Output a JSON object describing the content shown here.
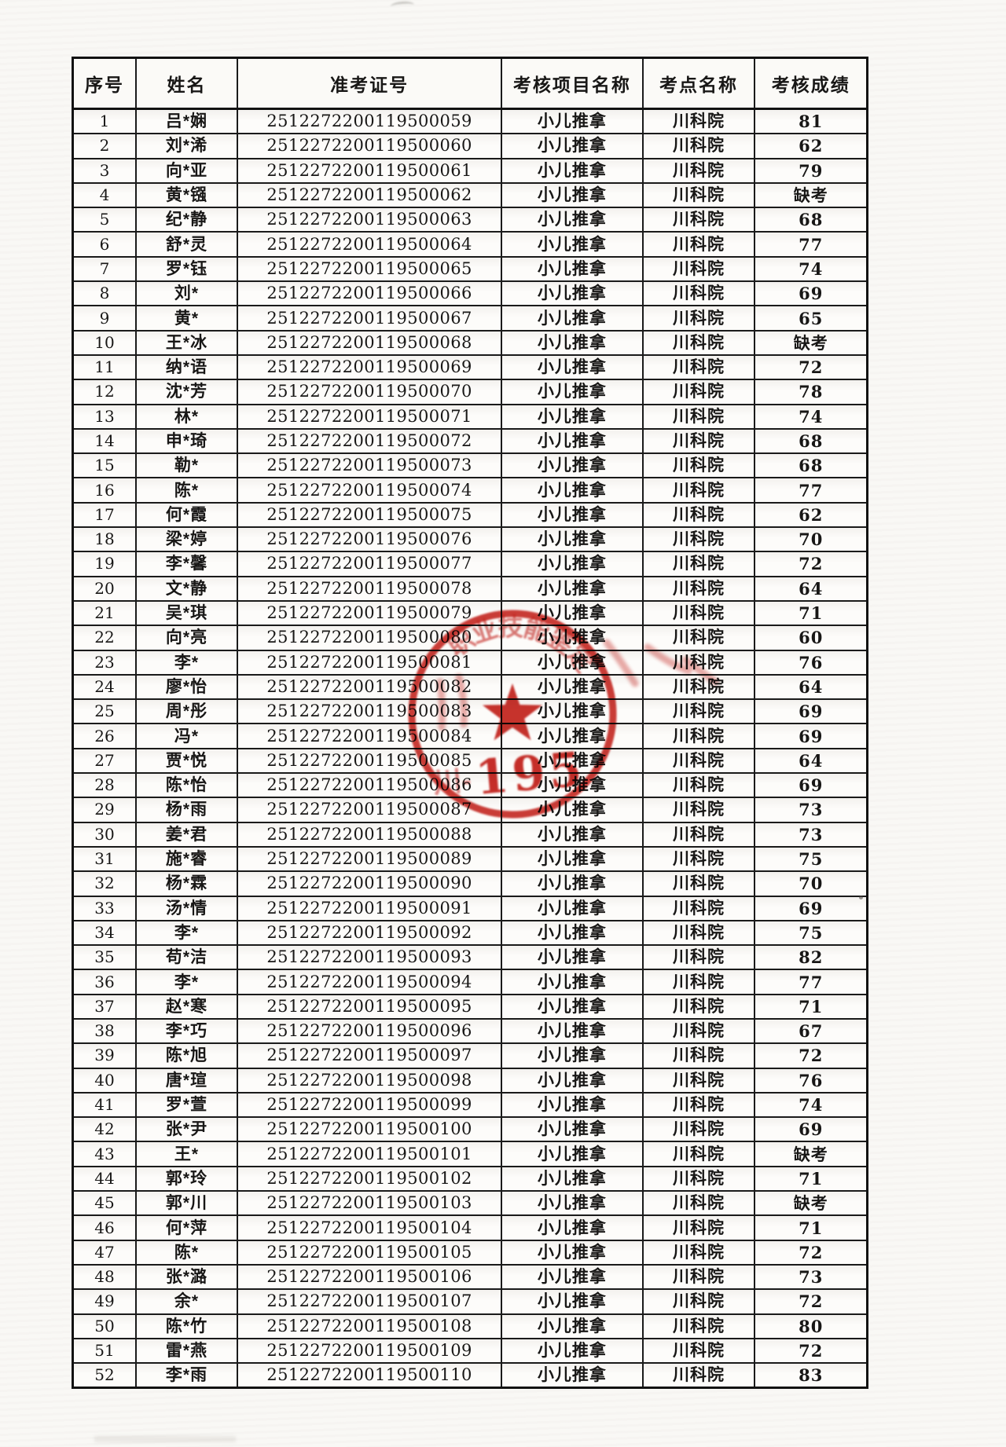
{
  "table": {
    "headers": [
      "序号",
      "姓名",
      "准考证号",
      "考核项目名称",
      "考点名称",
      "考核成绩"
    ],
    "rows": [
      [
        "1",
        "吕*娴",
        "2512272200119500059",
        "小儿推拿",
        "川科院",
        "81"
      ],
      [
        "2",
        "刘*浠",
        "2512272200119500060",
        "小儿推拿",
        "川科院",
        "62"
      ],
      [
        "3",
        "向*亚",
        "2512272200119500061",
        "小儿推拿",
        "川科院",
        "79"
      ],
      [
        "4",
        "黄*镪",
        "2512272200119500062",
        "小儿推拿",
        "川科院",
        "缺考"
      ],
      [
        "5",
        "纪*静",
        "2512272200119500063",
        "小儿推拿",
        "川科院",
        "68"
      ],
      [
        "6",
        "舒*灵",
        "2512272200119500064",
        "小儿推拿",
        "川科院",
        "77"
      ],
      [
        "7",
        "罗*钰",
        "2512272200119500065",
        "小儿推拿",
        "川科院",
        "74"
      ],
      [
        "8",
        "刘*",
        "2512272200119500066",
        "小儿推拿",
        "川科院",
        "69"
      ],
      [
        "9",
        "黄*",
        "2512272200119500067",
        "小儿推拿",
        "川科院",
        "65"
      ],
      [
        "10",
        "王*冰",
        "2512272200119500068",
        "小儿推拿",
        "川科院",
        "缺考"
      ],
      [
        "11",
        "纳*语",
        "2512272200119500069",
        "小儿推拿",
        "川科院",
        "72"
      ],
      [
        "12",
        "沈*芳",
        "2512272200119500070",
        "小儿推拿",
        "川科院",
        "78"
      ],
      [
        "13",
        "林*",
        "2512272200119500071",
        "小儿推拿",
        "川科院",
        "74"
      ],
      [
        "14",
        "申*琦",
        "2512272200119500072",
        "小儿推拿",
        "川科院",
        "68"
      ],
      [
        "15",
        "勒*",
        "2512272200119500073",
        "小儿推拿",
        "川科院",
        "68"
      ],
      [
        "16",
        "陈*",
        "2512272200119500074",
        "小儿推拿",
        "川科院",
        "77"
      ],
      [
        "17",
        "何*霞",
        "2512272200119500075",
        "小儿推拿",
        "川科院",
        "62"
      ],
      [
        "18",
        "梁*婷",
        "2512272200119500076",
        "小儿推拿",
        "川科院",
        "70"
      ],
      [
        "19",
        "李*馨",
        "2512272200119500077",
        "小儿推拿",
        "川科院",
        "72"
      ],
      [
        "20",
        "文*静",
        "2512272200119500078",
        "小儿推拿",
        "川科院",
        "64"
      ],
      [
        "21",
        "吴*琪",
        "2512272200119500079",
        "小儿推拿",
        "川科院",
        "71"
      ],
      [
        "22",
        "向*亮",
        "2512272200119500080",
        "小儿推拿",
        "川科院",
        "60"
      ],
      [
        "23",
        "李*",
        "2512272200119500081",
        "小儿推拿",
        "川科院",
        "76"
      ],
      [
        "24",
        "廖*怡",
        "2512272200119500082",
        "小儿推拿",
        "川科院",
        "64"
      ],
      [
        "25",
        "周*彤",
        "2512272200119500083",
        "小儿推拿",
        "川科院",
        "69"
      ],
      [
        "26",
        "冯*",
        "2512272200119500084",
        "小儿推拿",
        "川科院",
        "69"
      ],
      [
        "27",
        "贾*悦",
        "2512272200119500085",
        "小儿推拿",
        "川科院",
        "64"
      ],
      [
        "28",
        "陈*怡",
        "2512272200119500086",
        "小儿推拿",
        "川科院",
        "69"
      ],
      [
        "29",
        "杨*雨",
        "2512272200119500087",
        "小儿推拿",
        "川科院",
        "73"
      ],
      [
        "30",
        "姜*君",
        "2512272200119500088",
        "小儿推拿",
        "川科院",
        "73"
      ],
      [
        "31",
        "施*睿",
        "2512272200119500089",
        "小儿推拿",
        "川科院",
        "75"
      ],
      [
        "32",
        "杨*霖",
        "2512272200119500090",
        "小儿推拿",
        "川科院",
        "70"
      ],
      [
        "33",
        "汤*情",
        "2512272200119500091",
        "小儿推拿",
        "川科院",
        "69"
      ],
      [
        "34",
        "李*",
        "2512272200119500092",
        "小儿推拿",
        "川科院",
        "75"
      ],
      [
        "35",
        "苟*洁",
        "2512272200119500093",
        "小儿推拿",
        "川科院",
        "82"
      ],
      [
        "36",
        "李*",
        "2512272200119500094",
        "小儿推拿",
        "川科院",
        "77"
      ],
      [
        "37",
        "赵*寒",
        "2512272200119500095",
        "小儿推拿",
        "川科院",
        "71"
      ],
      [
        "38",
        "李*巧",
        "2512272200119500096",
        "小儿推拿",
        "川科院",
        "67"
      ],
      [
        "39",
        "陈*旭",
        "2512272200119500097",
        "小儿推拿",
        "川科院",
        "72"
      ],
      [
        "40",
        "唐*瑄",
        "2512272200119500098",
        "小儿推拿",
        "川科院",
        "76"
      ],
      [
        "41",
        "罗*萱",
        "2512272200119500099",
        "小儿推拿",
        "川科院",
        "74"
      ],
      [
        "42",
        "张*尹",
        "2512272200119500100",
        "小儿推拿",
        "川科院",
        "69"
      ],
      [
        "43",
        "王*",
        "2512272200119500101",
        "小儿推拿",
        "川科院",
        "缺考"
      ],
      [
        "44",
        "郭*玲",
        "2512272200119500102",
        "小儿推拿",
        "川科院",
        "71"
      ],
      [
        "45",
        "郭*川",
        "2512272200119500103",
        "小儿推拿",
        "川科院",
        "缺考"
      ],
      [
        "46",
        "何*萍",
        "2512272200119500104",
        "小儿推拿",
        "川科院",
        "71"
      ],
      [
        "47",
        "陈*",
        "2512272200119500105",
        "小儿推拿",
        "川科院",
        "72"
      ],
      [
        "48",
        "张*潞",
        "2512272200119500106",
        "小儿推拿",
        "川科院",
        "73"
      ],
      [
        "49",
        "余*",
        "2512272200119500107",
        "小儿推拿",
        "川科院",
        "72"
      ],
      [
        "50",
        "陈*竹",
        "2512272200119500108",
        "小儿推拿",
        "川科院",
        "80"
      ],
      [
        "51",
        "雷*燕",
        "2512272200119500109",
        "小儿推拿",
        "川科院",
        "72"
      ],
      [
        "52",
        "李*雨",
        "2512272200119500110",
        "小儿推拿",
        "川科院",
        "83"
      ]
    ]
  },
  "stamp": {
    "arc_text": "职业技能鉴定",
    "code_prefix": "川-",
    "code_number": "195",
    "color": "#c4221b"
  }
}
